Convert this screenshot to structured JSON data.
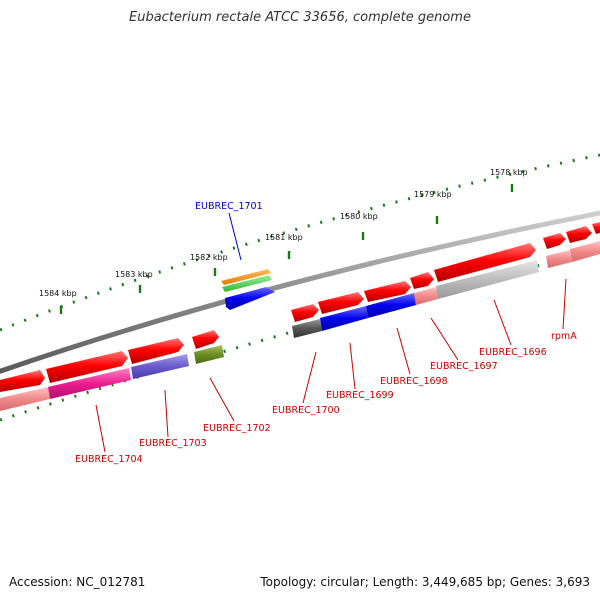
{
  "title": "Eubacterium rectale ATCC 33656, complete genome",
  "footer": {
    "accession": "Accession: NC_012781",
    "topology": "Topology: circular; Length: 3,449,685 bp; Genes: 3,693"
  },
  "scale_labels": [
    "1584 kbp",
    "1583 kbp",
    "1582 kbp",
    "1581 kbp",
    "1580 kbp",
    "1579 kbp",
    "1578 kbp"
  ],
  "gene_labels": {
    "eubrec_1701": "EUBREC_1701",
    "eubrec_1700": "EUBREC_1700",
    "eubrec_1699": "EUBREC_1699",
    "eubrec_1698": "EUBREC_1698",
    "eubrec_1697": "EUBREC_1697",
    "eubrec_1696": "EUBREC_1696",
    "rpma": "rpmA",
    "eubrec_1704": "EUBREC_1704",
    "eubrec_1703": "EUBREC_1703",
    "eubrec_1702": "EUBREC_1702"
  },
  "colors": {
    "backbone": "#8c8c8c",
    "cds": "#ee0000",
    "scale_ticks": "#1a7a1a",
    "gene_label": "#cc0000",
    "highlight_label": "#0000cc"
  }
}
